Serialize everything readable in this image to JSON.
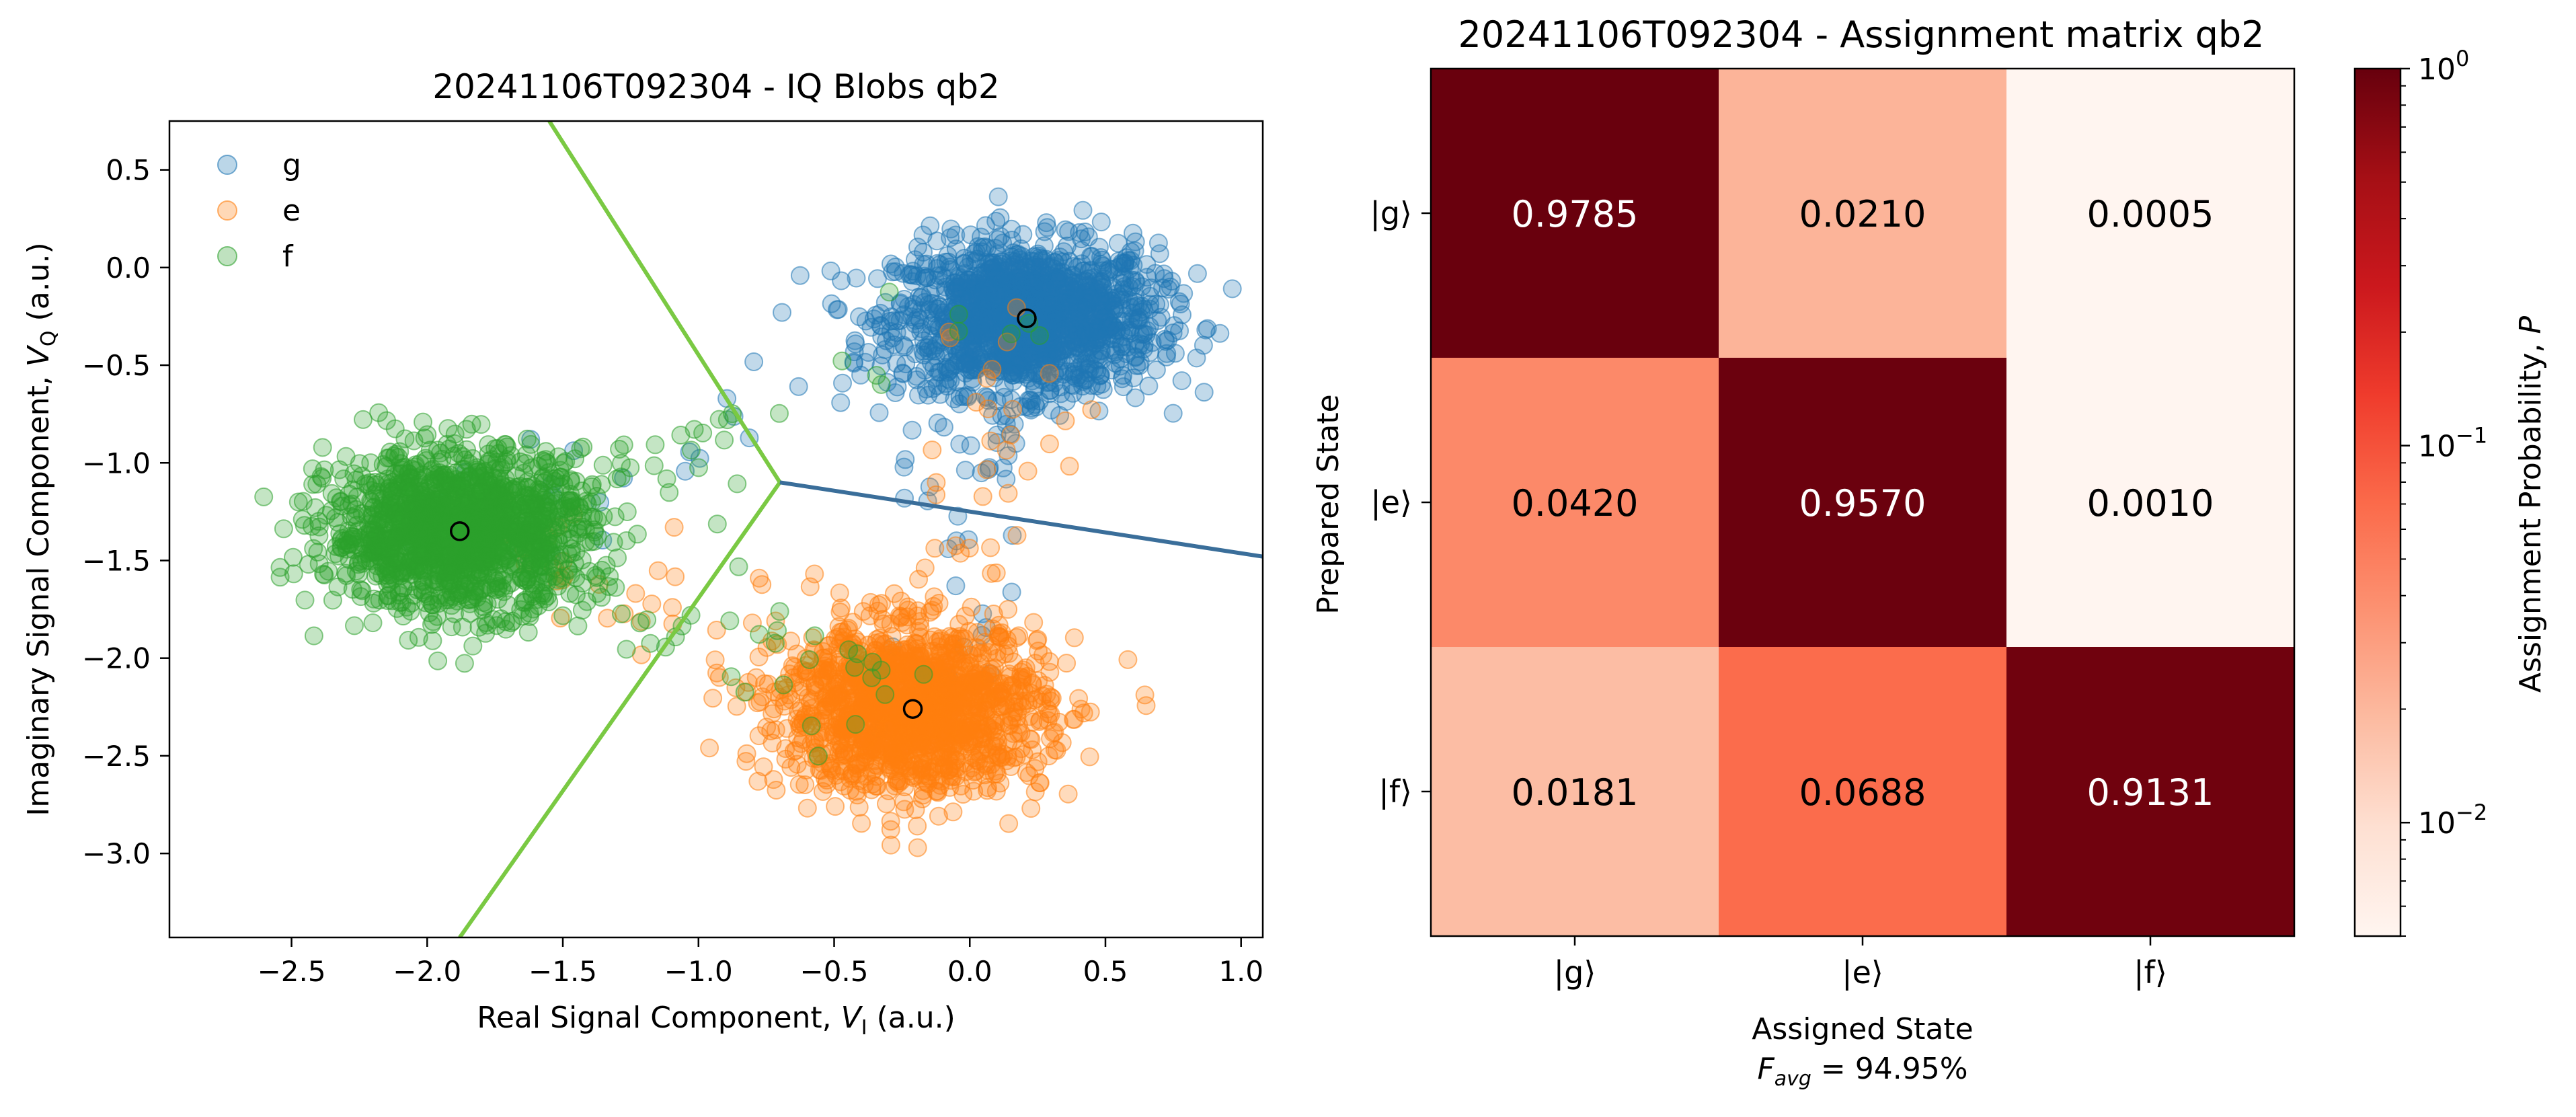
{
  "chart_data": [
    {
      "type": "scatter",
      "title": "20241106T092304 - IQ Blobs qb2",
      "xlabel": "Real Signal Component, ",
      "xlabel_var": "V",
      "xlabel_sub": "I",
      "xlabel_unit": " (a.u.)",
      "ylabel": "Imaginary Signal Component, ",
      "ylabel_var": "V",
      "ylabel_sub": "Q",
      "ylabel_unit": " (a.u.)",
      "xlim": [
        -2.95,
        1.08
      ],
      "ylim": [
        -3.43,
        0.75
      ],
      "xticks": [
        -2.5,
        -2.0,
        -1.5,
        -1.0,
        -0.5,
        0.0,
        0.5,
        1.0
      ],
      "xtick_labels": [
        "−2.5",
        "−2.0",
        "−1.5",
        "−1.0",
        "−0.5",
        "0.0",
        "0.5",
        "1.0"
      ],
      "yticks": [
        0.5,
        0.0,
        -0.5,
        -1.0,
        -1.5,
        -2.0,
        -2.5,
        -3.0
      ],
      "ytick_labels": [
        "0.5",
        "0.0",
        "−0.5",
        "−1.0",
        "−1.5",
        "−2.0",
        "−2.5",
        "−3.0"
      ],
      "legend_position": "top-left",
      "series": [
        {
          "name": "g",
          "color": "#1f77b4",
          "center": [
            0.21,
            -0.26
          ],
          "sigma": [
            0.24,
            0.19
          ],
          "n": 1500
        },
        {
          "name": "e",
          "color": "#ff7f0e",
          "center": [
            -0.21,
            -2.26
          ],
          "sigma": [
            0.24,
            0.21
          ],
          "n": 1500
        },
        {
          "name": "f",
          "color": "#2ca02c",
          "center": [
            -1.88,
            -1.35
          ],
          "sigma": [
            0.24,
            0.2
          ],
          "n": 1500
        }
      ],
      "centers": [
        [
          0.21,
          -0.26
        ],
        [
          -0.21,
          -2.26
        ],
        [
          -1.88,
          -1.35
        ]
      ],
      "boundaries": [
        {
          "from": [
            -0.7,
            -1.1
          ],
          "to": [
            -1.55,
            0.75
          ],
          "color": "#7ac943"
        },
        {
          "from": [
            -0.7,
            -1.1
          ],
          "to": [
            -1.88,
            -3.43
          ],
          "color": "#7ac943"
        },
        {
          "from": [
            -0.7,
            -1.1
          ],
          "to": [
            1.08,
            -1.48
          ],
          "color": "#3a6e9a"
        }
      ]
    },
    {
      "type": "heatmap",
      "title": "20241106T092304 - Assignment matrix qb2",
      "xlabel": "Assigned State",
      "ylabel": "Prepared State",
      "row_labels": [
        "|g⟩",
        "|e⟩",
        "|f⟩"
      ],
      "col_labels": [
        "|g⟩",
        "|e⟩",
        "|f⟩"
      ],
      "values": [
        [
          0.9785,
          0.021,
          0.0005
        ],
        [
          0.042,
          0.957,
          0.001
        ],
        [
          0.0181,
          0.0688,
          0.9131
        ]
      ],
      "value_labels": [
        [
          "0.9785",
          "0.0210",
          "0.0005"
        ],
        [
          "0.0420",
          "0.9570",
          "0.0010"
        ],
        [
          "0.0181",
          "0.0688",
          "0.9131"
        ]
      ],
      "colormap": "Reds",
      "color_scale": "log",
      "clim": [
        0.005,
        1.0
      ],
      "colorbar_label": "Assignment Probability, ",
      "colorbar_label_var": "P",
      "colorbar_ticks": [
        {
          "value": 1.0,
          "base": "10",
          "exp": "0"
        },
        {
          "value": 0.1,
          "base": "10",
          "exp": "−1"
        },
        {
          "value": 0.01,
          "base": "10",
          "exp": "−2"
        }
      ],
      "fidelity_var": "F",
      "fidelity_sub": "avg",
      "fidelity_text": " = 94.95%"
    }
  ]
}
